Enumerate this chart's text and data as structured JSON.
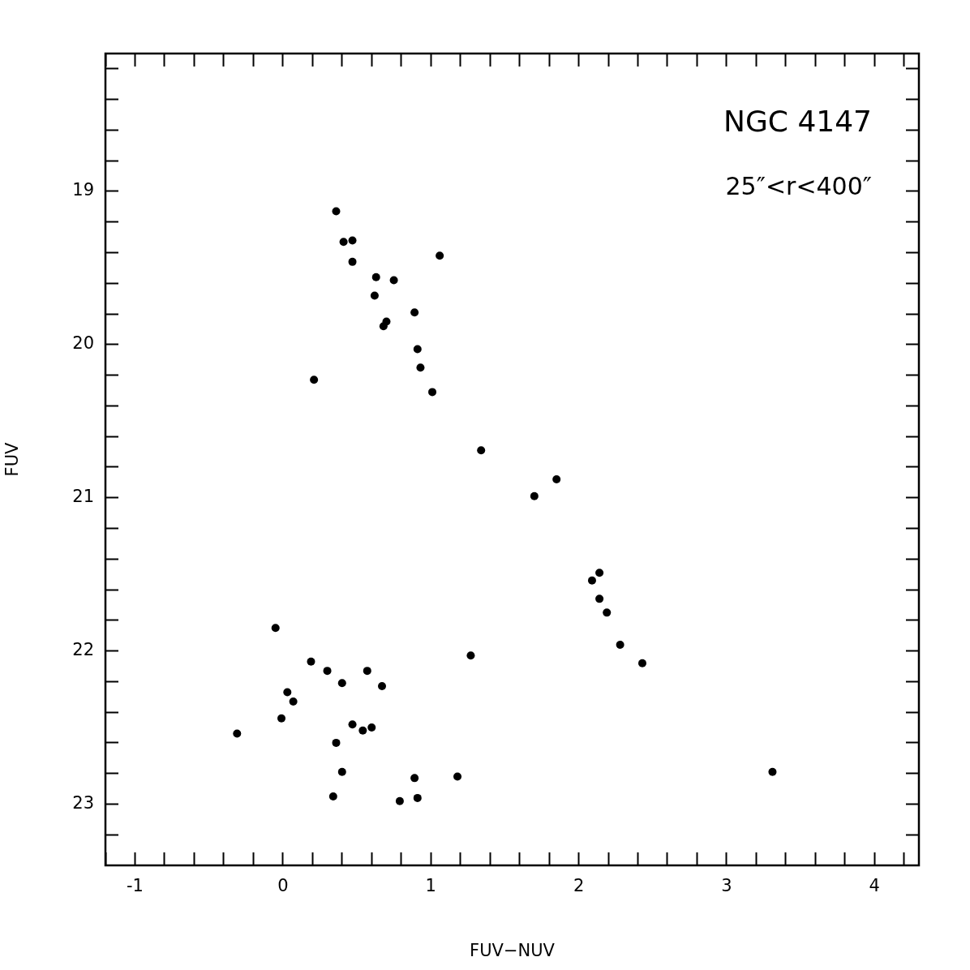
{
  "chart_data": {
    "type": "scatter",
    "xlabel": "FUV−NUV",
    "ylabel": "FUV",
    "annotations": [
      "NGC 4147",
      "25″<r<400″"
    ],
    "marker": "circle",
    "grid": false,
    "series": [
      {
        "color": "#000000",
        "x": [
          0.36,
          0.41,
          0.47,
          1.06,
          0.47,
          0.63,
          0.75,
          0.62,
          0.89,
          0.7,
          0.68,
          0.91,
          0.93,
          0.21,
          1.01,
          1.34,
          1.85,
          1.7,
          2.14,
          2.09,
          2.14,
          2.19,
          2.28,
          2.43,
          -0.05,
          1.27,
          0.19,
          0.3,
          0.57,
          0.4,
          0.67,
          0.03,
          0.07,
          -0.01,
          0.47,
          -0.31,
          0.54,
          0.6,
          0.36,
          0.4,
          3.31,
          0.89,
          1.18,
          0.34,
          0.79,
          0.91
        ],
        "values": [
          19.13,
          19.33,
          19.32,
          19.42,
          19.46,
          19.56,
          19.58,
          19.68,
          19.79,
          19.85,
          19.88,
          20.03,
          20.15,
          20.23,
          20.31,
          20.69,
          20.88,
          20.99,
          21.49,
          21.54,
          21.66,
          21.75,
          21.96,
          22.08,
          21.85,
          22.03,
          22.07,
          22.13,
          22.13,
          22.21,
          22.23,
          22.27,
          22.33,
          22.44,
          22.48,
          22.54,
          22.52,
          22.5,
          22.6,
          22.79,
          22.79,
          22.83,
          22.82,
          22.95,
          22.98,
          22.96
        ]
      }
    ],
    "xlim": [
      -1.2,
      4.3
    ],
    "ylim": [
      23.4,
      18.1
    ],
    "xticks": [
      {
        "value": -1.2,
        "label": null
      },
      -1,
      {
        "value": -0.8,
        "label": null
      },
      {
        "value": -0.6,
        "label": null
      },
      {
        "value": -0.4,
        "label": null
      },
      {
        "value": -0.2,
        "label": null
      },
      0,
      {
        "value": 0.2,
        "label": null
      },
      {
        "value": 0.4,
        "label": null
      },
      {
        "value": 0.6,
        "label": null
      },
      {
        "value": 0.8,
        "label": null
      },
      1,
      {
        "value": 1.2,
        "label": null
      },
      {
        "value": 1.4,
        "label": null
      },
      {
        "value": 1.6,
        "label": null
      },
      {
        "value": 1.8,
        "label": null
      },
      2,
      {
        "value": 2.2,
        "label": null
      },
      {
        "value": 2.4,
        "label": null
      },
      {
        "value": 2.6,
        "label": null
      },
      {
        "value": 2.8,
        "label": null
      },
      3,
      {
        "value": 3.2,
        "label": null
      },
      {
        "value": 3.4,
        "label": null
      },
      {
        "value": 3.6,
        "label": null
      },
      {
        "value": 3.8,
        "label": null
      },
      4,
      {
        "value": 4.2,
        "label": null
      }
    ],
    "yticks": [
      {
        "value": 18.2,
        "label": null
      },
      {
        "value": 18.4,
        "label": null
      },
      {
        "value": 18.6,
        "label": null
      },
      {
        "value": 18.8,
        "label": null
      },
      19,
      {
        "value": 19.2,
        "label": null
      },
      {
        "value": 19.4,
        "label": null
      },
      {
        "value": 19.6,
        "label": null
      },
      {
        "value": 19.8,
        "label": null
      },
      20,
      {
        "value": 20.2,
        "label": null
      },
      {
        "value": 20.4,
        "label": null
      },
      {
        "value": 20.6,
        "label": null
      },
      {
        "value": 20.8,
        "label": null
      },
      21,
      {
        "value": 21.2,
        "label": null
      },
      {
        "value": 21.4,
        "label": null
      },
      {
        "value": 21.6,
        "label": null
      },
      {
        "value": 21.8,
        "label": null
      },
      22,
      {
        "value": 22.2,
        "label": null
      },
      {
        "value": 22.4,
        "label": null
      },
      {
        "value": 22.6,
        "label": null
      },
      {
        "value": 22.8,
        "label": null
      },
      23,
      {
        "value": 23.2,
        "label": null
      }
    ]
  }
}
